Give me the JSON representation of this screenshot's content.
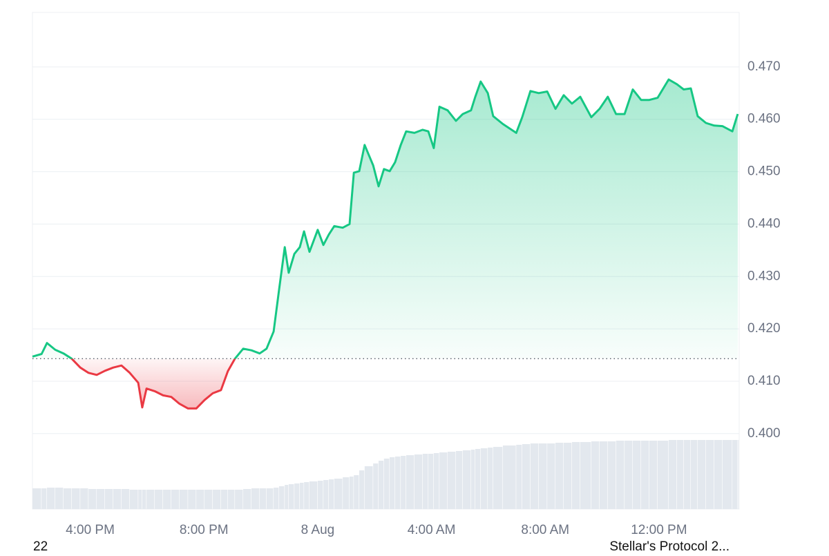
{
  "chart_data": {
    "type": "line",
    "x": [
      13.97,
      14.29,
      14.48,
      14.77,
      15.06,
      15.35,
      15.65,
      15.94,
      16.23,
      16.52,
      16.81,
      17.1,
      17.39,
      17.69,
      17.83,
      17.98,
      18.27,
      18.56,
      18.85,
      19.14,
      19.44,
      19.73,
      20.02,
      20.31,
      20.6,
      20.84,
      21.09,
      21.38,
      21.67,
      21.96,
      22.2,
      22.45,
      22.64,
      22.84,
      22.98,
      23.18,
      23.37,
      23.52,
      23.71,
      24.0,
      24.2,
      24.39,
      24.58,
      24.88,
      25.12,
      25.27,
      25.46,
      25.65,
      25.95,
      26.14,
      26.33,
      26.53,
      26.72,
      26.92,
      27.11,
      27.4,
      27.69,
      27.89,
      28.08,
      28.28,
      28.57,
      28.86,
      29.1,
      29.39,
      29.54,
      29.73,
      29.98,
      30.17,
      30.51,
      30.98,
      31.19,
      31.48,
      31.77,
      32.07,
      32.36,
      32.65,
      32.94,
      33.23,
      33.62,
      33.91,
      34.2,
      34.49,
      34.79,
      35.08,
      35.37,
      35.66,
      35.95,
      36.34,
      36.63,
      36.87,
      37.12,
      37.36,
      37.65,
      37.94,
      38.23,
      38.58,
      38.77
    ],
    "values": [
      0.4147,
      0.4152,
      0.4173,
      0.416,
      0.4153,
      0.4143,
      0.4126,
      0.4116,
      0.4112,
      0.412,
      0.4126,
      0.413,
      0.4116,
      0.4097,
      0.405,
      0.4086,
      0.4081,
      0.4073,
      0.407,
      0.4057,
      0.4048,
      0.4048,
      0.4064,
      0.4077,
      0.4083,
      0.4119,
      0.4143,
      0.4162,
      0.4159,
      0.4153,
      0.4162,
      0.4195,
      0.4274,
      0.4356,
      0.4307,
      0.4343,
      0.4356,
      0.4386,
      0.4347,
      0.4389,
      0.436,
      0.438,
      0.4396,
      0.4393,
      0.44,
      0.4498,
      0.4501,
      0.4551,
      0.4512,
      0.4472,
      0.4505,
      0.4501,
      0.4518,
      0.4551,
      0.4577,
      0.4574,
      0.458,
      0.4577,
      0.4545,
      0.4624,
      0.4617,
      0.4597,
      0.461,
      0.4617,
      0.4643,
      0.4672,
      0.465,
      0.4606,
      0.4591,
      0.4574,
      0.4604,
      0.4654,
      0.465,
      0.4653,
      0.462,
      0.4646,
      0.463,
      0.4643,
      0.4604,
      0.462,
      0.4643,
      0.461,
      0.461,
      0.4657,
      0.4637,
      0.4637,
      0.4641,
      0.4676,
      0.4667,
      0.4657,
      0.4659,
      0.4606,
      0.4593,
      0.4588,
      0.4587,
      0.4577,
      0.461
    ],
    "volume": [
      30,
      30,
      31,
      31,
      30,
      30,
      30,
      29,
      29,
      29,
      29,
      29,
      28,
      28,
      28,
      28,
      28,
      28,
      28,
      28,
      28,
      28,
      28,
      28,
      28,
      28,
      28,
      29,
      30,
      30,
      30,
      31,
      33,
      35,
      36,
      37,
      38,
      39,
      40,
      41,
      42,
      43,
      44,
      46,
      47,
      49,
      56,
      62,
      66,
      70,
      73,
      75,
      76,
      77,
      78,
      79,
      80,
      80,
      81,
      82,
      83,
      84,
      85,
      86,
      87,
      88,
      89,
      90,
      92,
      93,
      94,
      95,
      95,
      95,
      96,
      96,
      97,
      97,
      98,
      98,
      98,
      99,
      99,
      99,
      99,
      99,
      99,
      100,
      100,
      100,
      100,
      100,
      100,
      100,
      100,
      100,
      100
    ],
    "baseline": 0.4143,
    "up_color": "#16c784",
    "down_color": "#ea3943",
    "volume_color": "#e3e8ee",
    "ylim": [
      0.3856,
      0.4804
    ],
    "yticks": [
      {
        "value": 0.4,
        "label": "0.400"
      },
      {
        "value": 0.41,
        "label": "0.410"
      },
      {
        "value": 0.42,
        "label": "0.420"
      },
      {
        "value": 0.43,
        "label": "0.430"
      },
      {
        "value": 0.44,
        "label": "0.440"
      },
      {
        "value": 0.45,
        "label": "0.450"
      },
      {
        "value": 0.46,
        "label": "0.460"
      },
      {
        "value": 0.47,
        "label": "0.470"
      }
    ],
    "xlim": [
      13.97,
      38.82
    ],
    "xticks": [
      {
        "value": 16,
        "label": "4:00 PM"
      },
      {
        "value": 20,
        "label": "8:00 PM"
      },
      {
        "value": 24,
        "label": "8 Aug"
      },
      {
        "value": 28,
        "label": "4:00 AM"
      },
      {
        "value": 32,
        "label": "8:00 AM"
      },
      {
        "value": 36,
        "label": "12:00 PM"
      }
    ],
    "grid": true
  },
  "footer": {
    "left": "22",
    "right": "Stellar's Protocol 2..."
  }
}
